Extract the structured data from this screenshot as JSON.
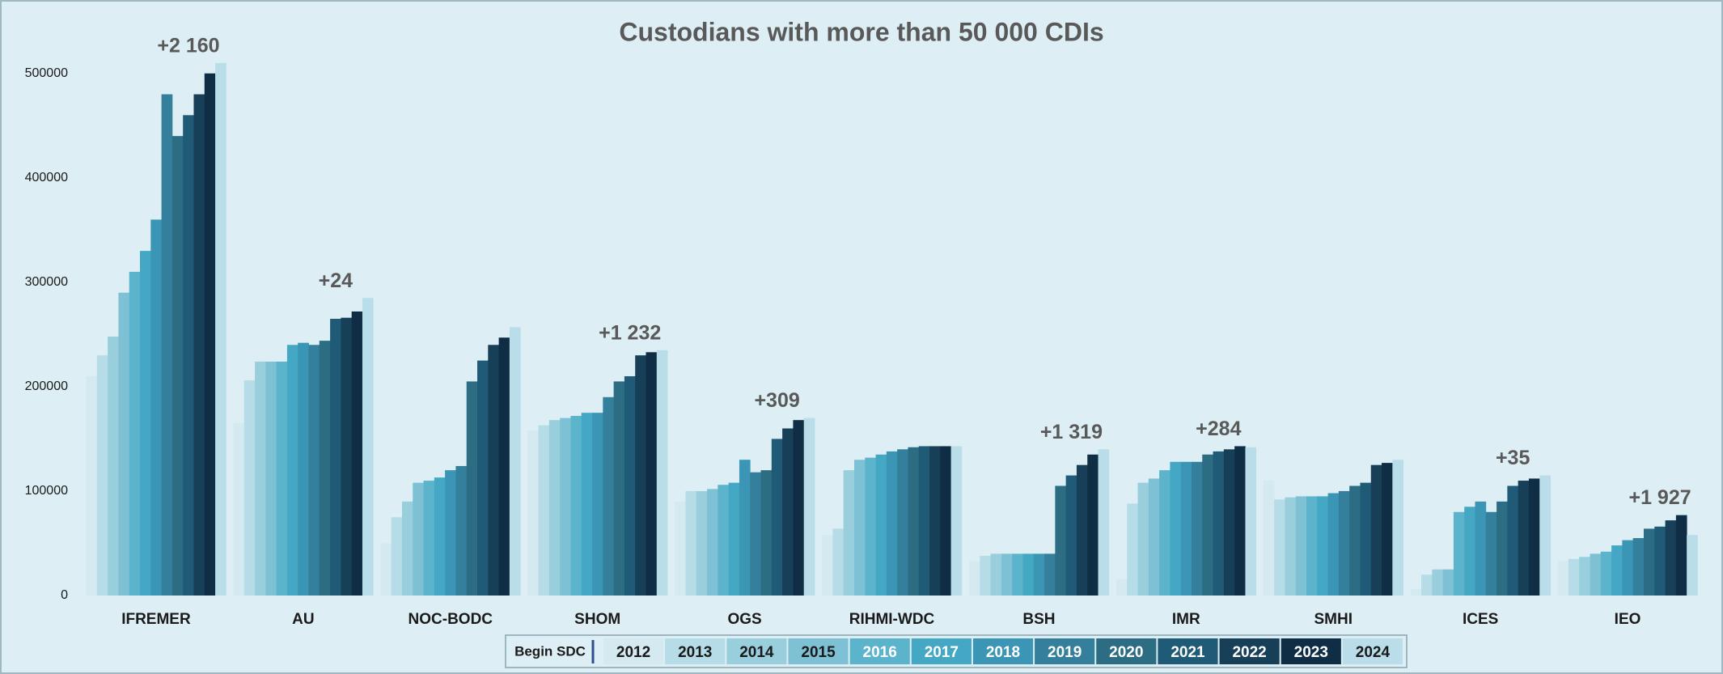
{
  "chart_data": {
    "type": "bar",
    "title": "Custodians with more than 50 000 CDIs",
    "categories": [
      "IFREMER",
      "AU",
      "NOC-BODC",
      "SHOM",
      "OGS",
      "RIHMI-WDC",
      "BSH",
      "IMR",
      "SMHI",
      "ICES",
      "IEO"
    ],
    "ylim": [
      0,
      530000
    ],
    "yticks": [
      0,
      100000,
      200000,
      300000,
      400000,
      500000
    ],
    "grid": false,
    "begin_sdc_label": "Begin SDC",
    "annotations": [
      "+2 160",
      "+24",
      null,
      "+1 232",
      "+309",
      null,
      "+1 319",
      "+284",
      null,
      "+35",
      "+1 927"
    ],
    "series": [
      {
        "name": "2012",
        "color": "#d4e9f0",
        "values": [
          210000,
          165000,
          50000,
          158000,
          90000,
          58000,
          33000,
          16000,
          110000,
          6000,
          33000
        ]
      },
      {
        "name": "2013",
        "color": "#b5dce7",
        "values": [
          230000,
          206000,
          75000,
          163000,
          100000,
          64000,
          38000,
          88000,
          92000,
          20000,
          35000
        ]
      },
      {
        "name": "2014",
        "color": "#99cfdd",
        "values": [
          248000,
          224000,
          90000,
          168000,
          100000,
          120000,
          40000,
          108000,
          94000,
          25000,
          37000
        ]
      },
      {
        "name": "2015",
        "color": "#7ec1d4",
        "values": [
          290000,
          224000,
          108000,
          170000,
          102000,
          130000,
          40000,
          112000,
          95000,
          25000,
          40000
        ]
      },
      {
        "name": "2016",
        "color": "#5bb4cc",
        "values": [
          310000,
          224000,
          110000,
          172000,
          106000,
          132000,
          40000,
          120000,
          95000,
          80000,
          42000
        ]
      },
      {
        "name": "2017",
        "color": "#44a7c4",
        "values": [
          330000,
          240000,
          113000,
          175000,
          108000,
          135000,
          40000,
          128000,
          95000,
          85000,
          48000
        ]
      },
      {
        "name": "2018",
        "color": "#3a96b4",
        "values": [
          360000,
          242000,
          120000,
          175000,
          130000,
          138000,
          40000,
          128000,
          98000,
          90000,
          53000
        ]
      },
      {
        "name": "2019",
        "color": "#347f9b",
        "values": [
          480000,
          240000,
          124000,
          190000,
          118000,
          140000,
          40000,
          128000,
          100000,
          80000,
          55000
        ]
      },
      {
        "name": "2020",
        "color": "#2c6d84",
        "values": [
          440000,
          244000,
          205000,
          205000,
          120000,
          142000,
          105000,
          135000,
          105000,
          90000,
          64000
        ]
      },
      {
        "name": "2021",
        "color": "#1f5a77",
        "values": [
          460000,
          265000,
          225000,
          210000,
          150000,
          143000,
          115000,
          138000,
          108000,
          105000,
          66000
        ]
      },
      {
        "name": "2022",
        "color": "#173f58",
        "values": [
          480000,
          266000,
          240000,
          230000,
          160000,
          143000,
          125000,
          140000,
          125000,
          110000,
          72000
        ]
      },
      {
        "name": "2023",
        "color": "#0f2e45",
        "values": [
          500000,
          272000,
          247000,
          233000,
          168000,
          143000,
          135000,
          143000,
          127000,
          112000,
          77000
        ]
      },
      {
        "name": "2024",
        "color": "#b9dee9",
        "values": [
          510000,
          285000,
          257000,
          235000,
          170000,
          143000,
          140000,
          142000,
          130000,
          115000,
          58000
        ]
      }
    ]
  }
}
